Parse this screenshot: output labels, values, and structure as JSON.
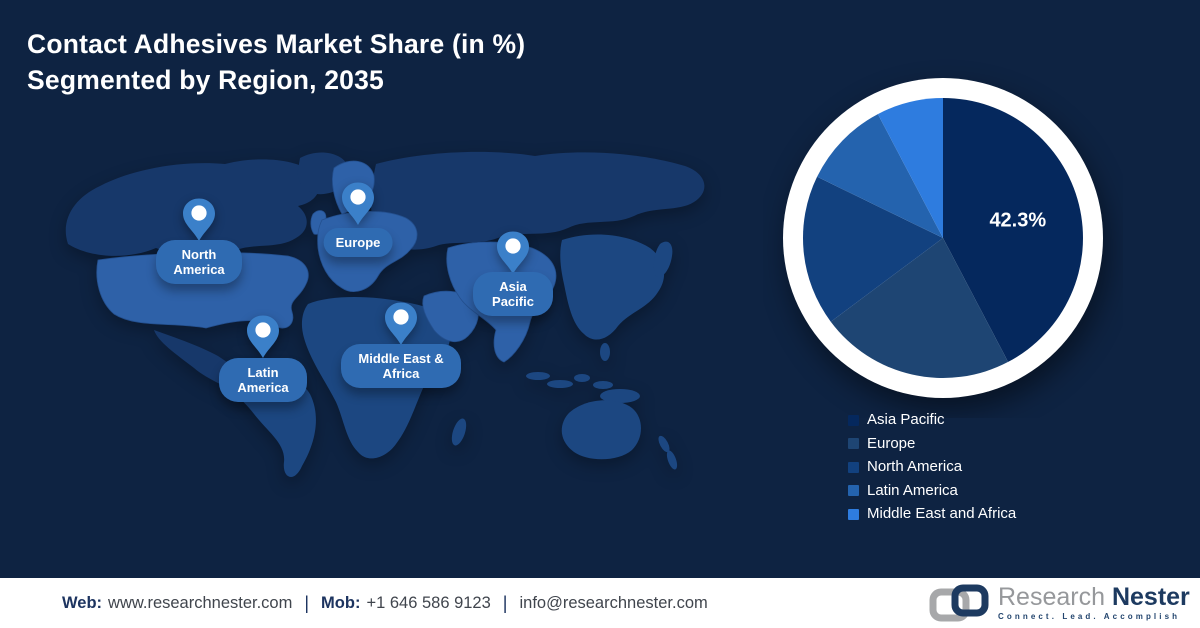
{
  "title": {
    "line1": "Contact Adhesives Market Share (in %)",
    "line2": "Segmented by Region, 2035"
  },
  "map": {
    "pins": [
      {
        "label": "North America"
      },
      {
        "label": "Europe"
      },
      {
        "label": "Asia Pacific"
      },
      {
        "label": "Middle East & Africa"
      },
      {
        "label": "Latin America"
      }
    ]
  },
  "chart_data": {
    "type": "pie",
    "title": "Contact Adhesives Market Share (in %) Segmented by Region, 2035",
    "unit": "%",
    "start_angle": "12-oclock",
    "direction": "clockwise",
    "series": [
      {
        "name": "Asia Pacific",
        "value": 42.3,
        "color": "#05285d"
      },
      {
        "name": "Europe",
        "value": 22.5,
        "color": "#1e4573"
      },
      {
        "name": "North America",
        "value": 17.4,
        "color": "#12417f"
      },
      {
        "name": "Latin America",
        "value": 10.1,
        "color": "#2463ae"
      },
      {
        "name": "Middle East and Africa",
        "value": 7.7,
        "color": "#2e7cdf"
      }
    ],
    "data_label": {
      "text": "42.3%",
      "series": "Asia Pacific"
    },
    "legend": [
      "Asia Pacific",
      "Europe",
      "North America",
      "Latin America",
      "Middle East and Africa"
    ],
    "legend_position": "below-right"
  },
  "footer": {
    "web_label": "Web:",
    "web_value": "www.researchnester.com",
    "mob_label": "Mob:",
    "mob_value": "+1 646 586 9123",
    "email": "info@researchnester.com",
    "divider": "|"
  },
  "logo": {
    "name_primary": "Research",
    "name_secondary": "Nester",
    "tagline": "Connect. Lead. Accomplish"
  },
  "theme": {
    "background": "#0e2342",
    "title": "#ffffff",
    "footer_bg": "#ffffff",
    "footer_label": "#1d3460",
    "footer_value": "#40454d",
    "pin": "#3b80c9",
    "pill": "#2f6bb2",
    "land_dim": "#17386a",
    "land_medium": "#1c4781",
    "land_highlight": "#2e61a8",
    "pie_ring": "#ffffff",
    "legend_text": "#ffffff"
  }
}
